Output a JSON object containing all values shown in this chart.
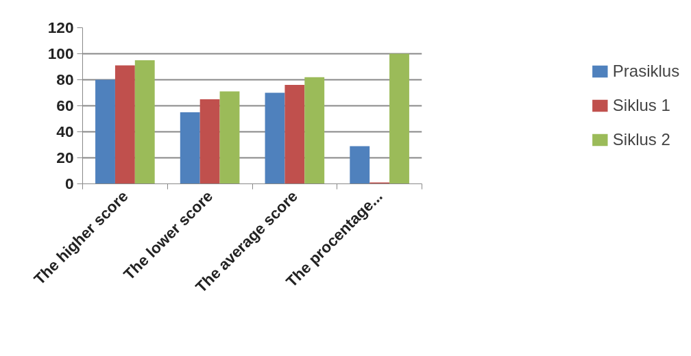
{
  "chart_data": {
    "type": "bar",
    "categories": [
      "The higher score",
      "The lower score",
      "The average score",
      "The procentage..."
    ],
    "series": [
      {
        "name": "Prasiklus",
        "color": "#4f81bd",
        "values": [
          80,
          55,
          70,
          29
        ]
      },
      {
        "name": "Siklus 1",
        "color": "#c0504d",
        "values": [
          91,
          65,
          76,
          1
        ]
      },
      {
        "name": "Siklus 2",
        "color": "#9bbb59",
        "values": [
          95,
          71,
          82,
          100
        ]
      }
    ],
    "ylim": [
      0,
      120
    ],
    "yticks": [
      0,
      20,
      40,
      60,
      80,
      100,
      120
    ],
    "grid": "y",
    "legend": "right"
  }
}
